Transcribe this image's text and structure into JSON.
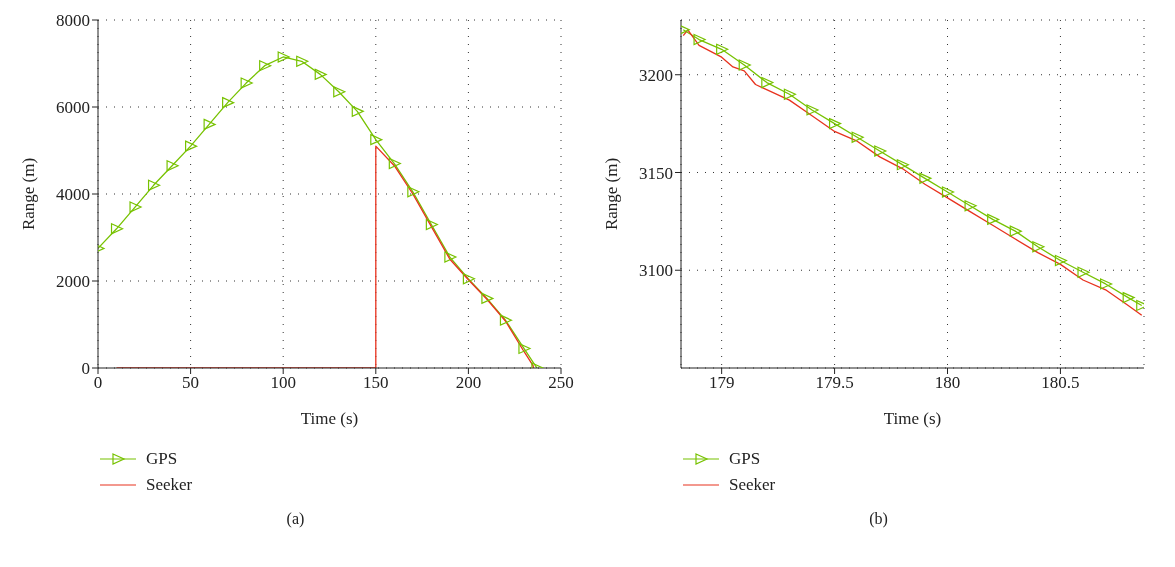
{
  "chart_data": [
    {
      "type": "line",
      "xlabel": "Time (s)",
      "ylabel": "Range (m)",
      "xlim": [
        0,
        250
      ],
      "xticks": [
        0,
        50,
        100,
        150,
        200,
        250
      ],
      "ylim": [
        0,
        8000
      ],
      "yticks": [
        0,
        2000,
        4000,
        6000,
        8000
      ],
      "grid": true,
      "legend": "bottom left",
      "annotations": [
        "(a)"
      ],
      "series": [
        {
          "name": "GPS",
          "color": "#77c200",
          "marker": "triangle",
          "x": [
            0,
            10,
            20,
            30,
            40,
            50,
            60,
            70,
            80,
            90,
            100,
            110,
            120,
            130,
            140,
            150,
            160,
            170,
            180,
            190,
            200,
            210,
            220,
            230,
            237
          ],
          "values": [
            2750,
            3200,
            3700,
            4200,
            4650,
            5100,
            5600,
            6100,
            6550,
            6950,
            7150,
            7050,
            6750,
            6350,
            5900,
            5250,
            4700,
            4050,
            3300,
            2550,
            2050,
            1600,
            1100,
            450,
            0
          ]
        },
        {
          "name": "Seeker",
          "color": "#e8321e",
          "marker": "none",
          "x": [
            10,
            150,
            150,
            160,
            170,
            180,
            190,
            200,
            210,
            220,
            230,
            235,
            235
          ],
          "values": [
            0,
            0,
            5100,
            4650,
            4000,
            3250,
            2500,
            2030,
            1580,
            1080,
            380,
            50,
            0
          ]
        }
      ]
    },
    {
      "type": "line",
      "xlabel": "Time (s)",
      "ylabel": "Range (m)",
      "xlim": [
        178.82,
        180.87
      ],
      "xticks": [
        179,
        179.5,
        180,
        180.5
      ],
      "ylim": [
        3050,
        3228
      ],
      "yticks": [
        3100,
        3150,
        3200
      ],
      "grid": true,
      "legend": "bottom left",
      "annotations": [
        "(b)"
      ],
      "series": [
        {
          "name": "GPS",
          "color": "#77c200",
          "marker": "triangle",
          "x": [
            178.83,
            178.9,
            179.0,
            179.1,
            179.2,
            179.3,
            179.4,
            179.5,
            179.6,
            179.7,
            179.8,
            179.9,
            180.0,
            180.1,
            180.2,
            180.3,
            180.4,
            180.5,
            180.6,
            180.7,
            180.8,
            180.86
          ],
          "values": [
            3223,
            3218,
            3213,
            3205,
            3196,
            3190,
            3182,
            3175,
            3168,
            3161,
            3154,
            3147,
            3140,
            3133,
            3126,
            3120,
            3112,
            3105,
            3099,
            3093,
            3086,
            3082
          ]
        },
        {
          "name": "Seeker",
          "color": "#e8321e",
          "marker": "none",
          "x": [
            178.83,
            178.85,
            178.9,
            179.0,
            179.05,
            179.1,
            179.15,
            179.3,
            179.4,
            179.5,
            179.6,
            179.7,
            179.8,
            179.9,
            180.0,
            180.1,
            180.2,
            180.3,
            180.4,
            180.5,
            180.6,
            180.7,
            180.8,
            180.86
          ],
          "values": [
            3220,
            3223,
            3215,
            3209,
            3204,
            3202,
            3195,
            3187,
            3179,
            3171,
            3166,
            3158,
            3152,
            3144,
            3137,
            3130,
            3123,
            3116,
            3109,
            3103,
            3095,
            3090,
            3082,
            3077
          ]
        }
      ]
    }
  ]
}
